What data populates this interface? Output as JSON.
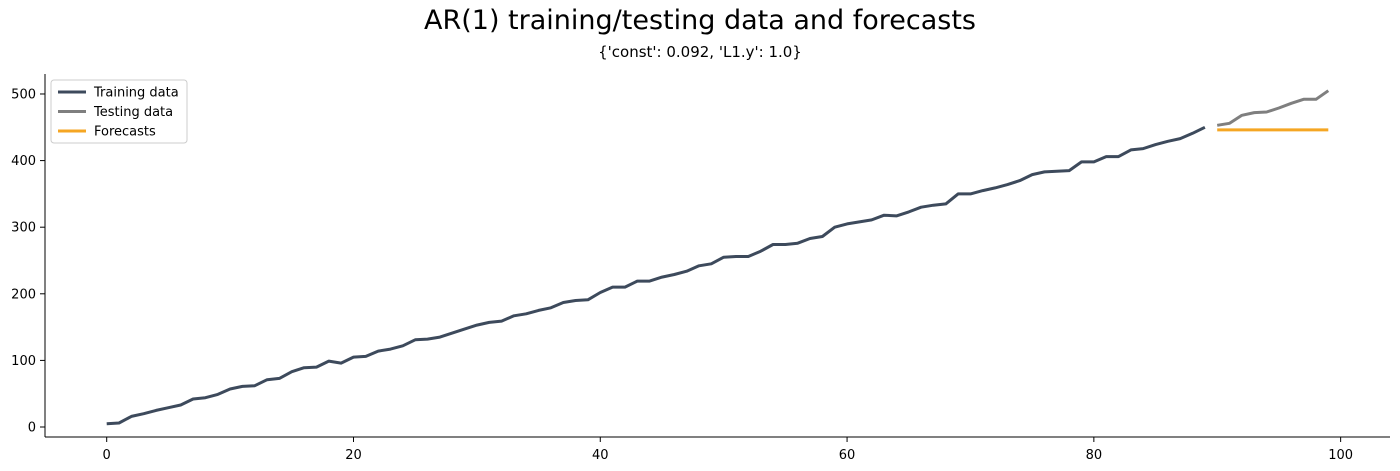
{
  "chart_data": {
    "type": "line",
    "title": "AR(1) training/testing data and forecasts",
    "subtitle": "{'const': 0.092, 'L1.y': 1.0}",
    "xlabel": "",
    "ylabel": "",
    "xlim": [
      -5,
      104
    ],
    "ylim": [
      -15,
      530
    ],
    "xticks": [
      0,
      20,
      40,
      60,
      80,
      100
    ],
    "yticks": [
      0,
      100,
      200,
      300,
      400,
      500
    ],
    "grid": false,
    "legend": "top-left",
    "series": [
      {
        "name": "Training data",
        "color": "#3d4a5c",
        "x": [
          0,
          1,
          2,
          3,
          4,
          5,
          6,
          7,
          8,
          9,
          10,
          11,
          12,
          13,
          14,
          15,
          16,
          17,
          18,
          19,
          20,
          21,
          22,
          23,
          24,
          25,
          26,
          27,
          28,
          29,
          30,
          31,
          32,
          33,
          34,
          35,
          36,
          37,
          38,
          39,
          40,
          41,
          42,
          43,
          44,
          45,
          46,
          47,
          48,
          49,
          50,
          51,
          52,
          53,
          54,
          55,
          56,
          57,
          58,
          59,
          60,
          61,
          62,
          63,
          64,
          65,
          66,
          67,
          68,
          69,
          70,
          71,
          72,
          73,
          74,
          75,
          76,
          77,
          78,
          79,
          80,
          81,
          82,
          83,
          84,
          85,
          86,
          87,
          88,
          89
        ],
        "y": [
          5,
          6,
          16,
          20,
          25,
          29,
          33,
          42,
          44,
          49,
          57,
          61,
          62,
          71,
          73,
          83,
          89,
          90,
          99,
          96,
          105,
          106,
          114,
          117,
          122,
          131,
          132,
          135,
          141,
          147,
          153,
          157,
          159,
          167,
          170,
          175,
          179,
          187,
          190,
          191,
          202,
          210,
          210,
          219,
          219,
          225,
          229,
          234,
          242,
          245,
          255,
          256,
          256,
          264,
          274,
          274,
          276,
          283,
          286,
          300,
          305,
          308,
          311,
          318,
          317,
          323,
          330,
          333,
          335,
          350,
          350,
          355,
          359,
          364,
          370,
          379,
          383,
          384,
          385,
          398,
          398,
          406,
          406,
          416,
          418,
          424,
          429,
          433,
          441,
          450
        ]
      },
      {
        "name": "Testing data",
        "color": "#7f7f7f",
        "x": [
          90,
          91,
          92,
          93,
          94,
          95,
          96,
          97,
          98,
          99
        ],
        "y": [
          453,
          456,
          468,
          472,
          473,
          479,
          486,
          492,
          492,
          505
        ]
      },
      {
        "name": "Forecasts",
        "color": "#f5a623",
        "x": [
          90,
          91,
          92,
          93,
          94,
          95,
          96,
          97,
          98,
          99
        ],
        "y": [
          446,
          446,
          446,
          446,
          446,
          446,
          446,
          446,
          446,
          446
        ]
      }
    ]
  }
}
